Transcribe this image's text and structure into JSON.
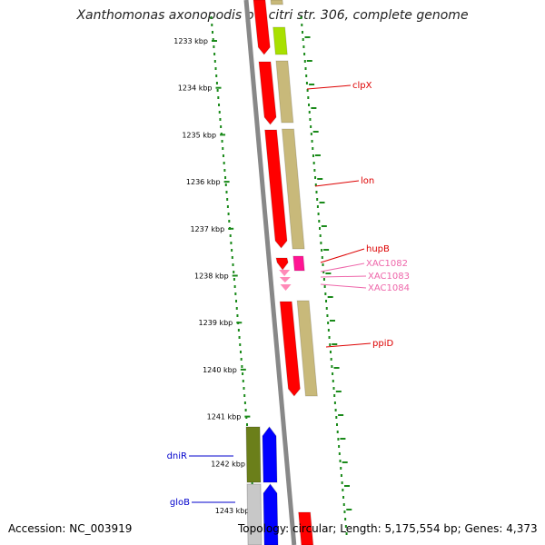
{
  "title": "Xanthomonas axonopodis pv. citri str. 306, complete genome",
  "footer": {
    "accession": "Accession: NC_003919",
    "summary": "Topology: circular; Length: 5,175,554 bp; Genes: 4,373"
  },
  "ruler": {
    "unit": "kbp",
    "ticks": [
      "1233 kbp",
      "1234 kbp",
      "1235 kbp",
      "1236 kbp",
      "1237 kbp",
      "1238 kbp",
      "1239 kbp",
      "1240 kbp",
      "1241 kbp",
      "1242 kbp",
      "1243 kbp"
    ]
  },
  "colors": {
    "forward_cds": "#ff0000",
    "reverse_cds": "#c8b97a",
    "reverse_cds_green": "#a8e000",
    "forward_rna": "#0000ff",
    "reverse_cds_dark": "#6b7f1a",
    "misc_feature": "#ff1493",
    "hypothetical": "#ff8ab8",
    "backbone": "#888888",
    "dots": "#1a8a1a",
    "label_red": "#dd0000",
    "label_pink": "#ee66aa",
    "label_blue": "#0000cc"
  },
  "gene_labels": [
    {
      "name": "clpX",
      "side": "right",
      "color_key": "label_red"
    },
    {
      "name": "lon",
      "side": "right",
      "color_key": "label_red"
    },
    {
      "name": "hupB",
      "side": "right",
      "color_key": "label_red"
    },
    {
      "name": "XAC1082",
      "side": "right",
      "color_key": "label_pink"
    },
    {
      "name": "XAC1083",
      "side": "right",
      "color_key": "label_pink"
    },
    {
      "name": "XAC1084",
      "side": "right",
      "color_key": "label_pink"
    },
    {
      "name": "ppiD",
      "side": "right",
      "color_key": "label_red"
    },
    {
      "name": "dniR",
      "side": "left",
      "color_key": "label_blue"
    },
    {
      "name": "gloB",
      "side": "left",
      "color_key": "label_blue"
    }
  ]
}
